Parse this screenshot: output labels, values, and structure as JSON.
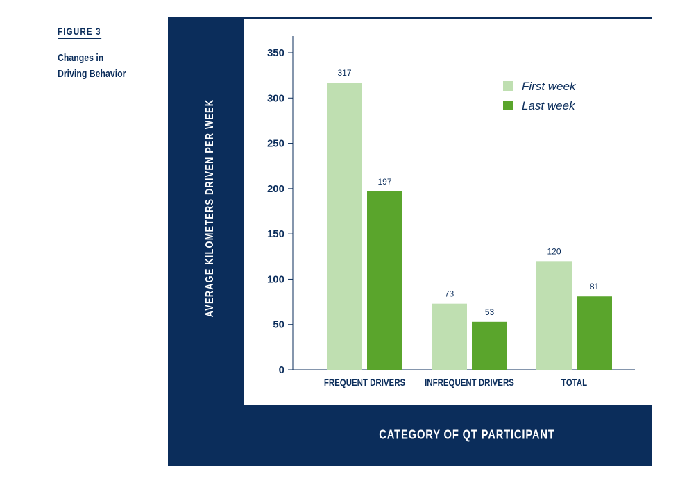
{
  "figure": {
    "label": "FIGURE 3",
    "caption_line1": "Changes in",
    "caption_line2": "Driving Behavior"
  },
  "colors": {
    "navy": "#0b2d5b",
    "first_week": "#bfdfb1",
    "last_week": "#5aa52c"
  },
  "chart_data": {
    "type": "bar",
    "title": "Changes in Driving Behavior",
    "xlabel": "CATEGORY OF QT PARTICIPANT",
    "ylabel": "AVERAGE KILOMETERS DRIVEN PER WEEK",
    "categories": [
      "FREQUENT DRIVERS",
      "INFREQUENT DRIVERS",
      "TOTAL"
    ],
    "series": [
      {
        "name": "First week",
        "values": [
          317,
          73,
          120
        ]
      },
      {
        "name": "Last week",
        "values": [
          197,
          53,
          81
        ]
      }
    ],
    "ylim": [
      0,
      350
    ],
    "yticks": [
      0,
      50,
      100,
      150,
      200,
      250,
      300,
      350
    ],
    "grid": false,
    "legend_position": "top-right"
  }
}
